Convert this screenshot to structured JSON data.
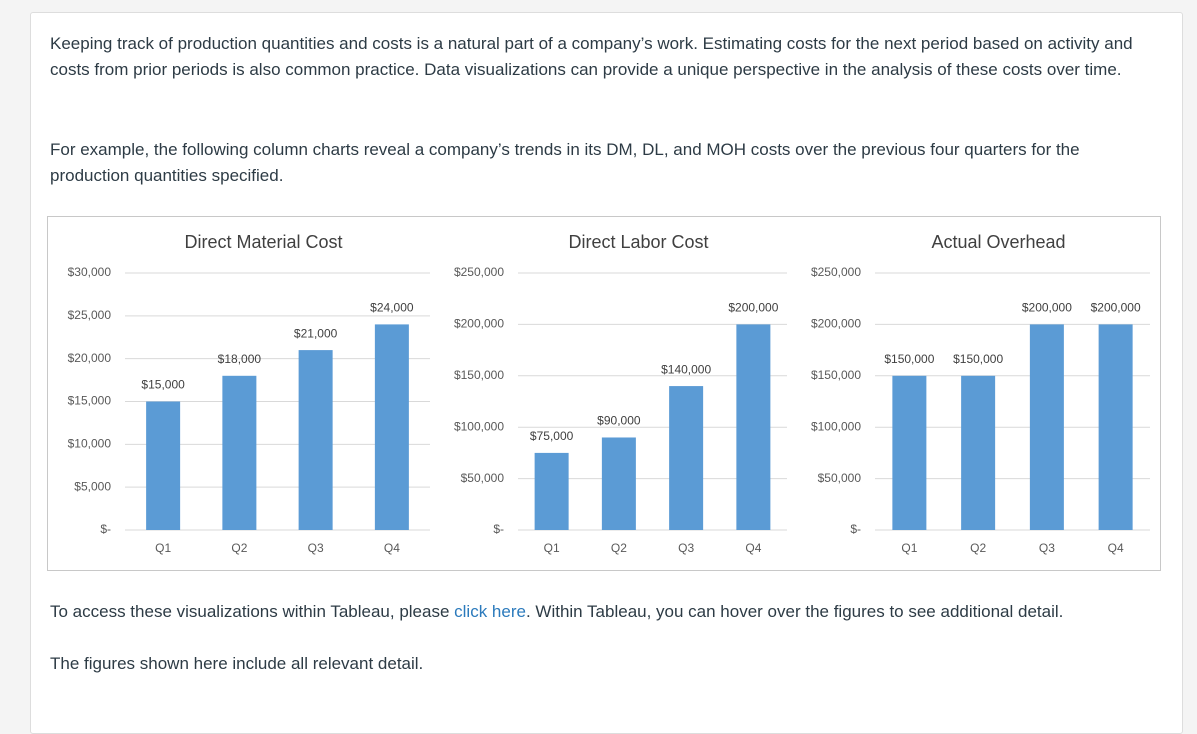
{
  "paragraphs": [
    "Keeping track of production quantities and costs is a natural part of a company’s work. Estimating costs for the next period based on activity and costs from prior periods is also common practice. Data visualizations can provide a unique perspective in the analysis of these costs over time.",
    "For example, the following column charts reveal a company’s trends in its DM, DL, and MOH costs over the previous four quarters for the production quantities specified."
  ],
  "link_paragraph": {
    "before": "To access these visualizations within Tableau, please ",
    "link": "click here",
    "after": ". Within Tableau, you can hover over the figures to see additional detail."
  },
  "closing": "The figures shown here include all relevant detail.",
  "chart_data": [
    {
      "type": "bar",
      "title": "Direct Material Cost",
      "categories": [
        "Q1",
        "Q2",
        "Q3",
        "Q4"
      ],
      "values": [
        15000,
        18000,
        21000,
        24000
      ],
      "value_labels": [
        "$15,000",
        "$18,000",
        "$21,000",
        "$24,000"
      ],
      "color": "#5b9bd5",
      "ylim": [
        0,
        30000
      ],
      "yticks": [
        {
          "value": 0,
          "label": "$-"
        },
        {
          "value": 5000,
          "label": "$5,000"
        },
        {
          "value": 10000,
          "label": "$10,000"
        },
        {
          "value": 15000,
          "label": "$15,000"
        },
        {
          "value": 20000,
          "label": "$20,000"
        },
        {
          "value": 25000,
          "label": "$25,000"
        },
        {
          "value": 30000,
          "label": "$30,000"
        }
      ],
      "grid": true
    },
    {
      "type": "bar",
      "title": "Direct Labor Cost",
      "categories": [
        "Q1",
        "Q2",
        "Q3",
        "Q4"
      ],
      "values": [
        75000,
        90000,
        140000,
        200000
      ],
      "value_labels": [
        "$75,000",
        "$90,000",
        "$140,000",
        "$200,000"
      ],
      "color": "#5b9bd5",
      "ylim": [
        0,
        250000
      ],
      "yticks": [
        {
          "value": 0,
          "label": "$-"
        },
        {
          "value": 50000,
          "label": "$50,000"
        },
        {
          "value": 100000,
          "label": "$100,000"
        },
        {
          "value": 150000,
          "label": "$150,000"
        },
        {
          "value": 200000,
          "label": "$200,000"
        },
        {
          "value": 250000,
          "label": "$250,000"
        }
      ],
      "grid": true
    },
    {
      "type": "bar",
      "title": "Actual Overhead",
      "categories": [
        "Q1",
        "Q2",
        "Q3",
        "Q4"
      ],
      "values": [
        150000,
        150000,
        200000,
        200000
      ],
      "value_labels": [
        "$150,000",
        "$150,000",
        "$200,000",
        "$200,000"
      ],
      "color": "#5b9bd5",
      "ylim": [
        0,
        250000
      ],
      "yticks": [
        {
          "value": 0,
          "label": "$-"
        },
        {
          "value": 50000,
          "label": "$50,000"
        },
        {
          "value": 100000,
          "label": "$100,000"
        },
        {
          "value": 150000,
          "label": "$150,000"
        },
        {
          "value": 200000,
          "label": "$200,000"
        },
        {
          "value": 250000,
          "label": "$250,000"
        }
      ],
      "grid": true
    }
  ]
}
